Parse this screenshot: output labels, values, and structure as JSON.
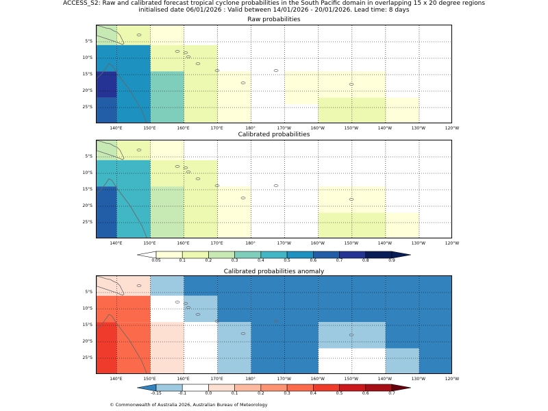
{
  "header": {
    "title_line1": "ACCESS_S2: Raw and calibrated forecast tropical cyclone probabilities in the South Pacific domain in overlapping 15 x 20 degree regions",
    "title_line2": "initialised date 06/01/2026 :  Valid between 14/01/2026 - 20/01/2026. Lead time: 8 days"
  },
  "axes": {
    "lat_labels": [
      "5°S",
      "10°S",
      "15°S",
      "20°S",
      "25°S"
    ],
    "lon_labels": [
      "140°E",
      "150°E",
      "160°E",
      "170°E",
      "180°",
      "170°W",
      "160°W",
      "150°W",
      "140°W",
      "130°W",
      "120°W"
    ]
  },
  "panels": [
    {
      "title": "Raw probabilities"
    },
    {
      "title": "Calibrated probabilities"
    },
    {
      "title": "Calibrated probabilities anomaly"
    }
  ],
  "colorbar_prob": {
    "ticks": [
      "0.05",
      "0.1",
      "0.2",
      "0.3",
      "0.4",
      "0.5",
      "0.6",
      "0.7",
      "0.8",
      "0.9"
    ],
    "colors": [
      "#ffffd9",
      "#edf8b1",
      "#c7e9b4",
      "#7fcdbb",
      "#41b6c4",
      "#1d91c0",
      "#225ea8",
      "#253494",
      "#081d58"
    ],
    "under_color": "#ffffff",
    "over_color": "#081d58"
  },
  "colorbar_anom": {
    "ticks": [
      "-0.15",
      "-0.1",
      "0.0",
      "0.1",
      "0.2",
      "0.3",
      "0.4",
      "0.5",
      "0.6",
      "0.7"
    ],
    "colors": [
      "#9ecae1",
      "#ffffff",
      "#fee0d2",
      "#fcbba1",
      "#fc9272",
      "#fb6a4a",
      "#ef3b2c",
      "#cb181d",
      "#a50f15"
    ],
    "under_color": "#3182bd",
    "over_color": "#67000d"
  },
  "chart_data": [
    {
      "type": "heatmap",
      "title": "Raw probabilities",
      "units": "probability",
      "regions_lon_deg": [
        [
          134,
          140
        ],
        [
          140,
          150
        ],
        [
          150,
          160
        ],
        [
          160,
          170
        ],
        [
          170,
          180
        ],
        [
          180,
          190
        ],
        [
          190,
          200
        ],
        [
          200,
          210
        ],
        [
          210,
          220
        ],
        [
          220,
          230
        ],
        [
          230,
          240
        ]
      ],
      "cells": [
        {
          "lon": [
            134,
            140
          ],
          "lat": [
            0,
            -6
          ],
          "value": 0.25
        },
        {
          "lon": [
            134,
            140
          ],
          "lat": [
            -6,
            -14
          ],
          "value": 0.55
        },
        {
          "lon": [
            134,
            140
          ],
          "lat": [
            -14,
            -22
          ],
          "value": 0.75
        },
        {
          "lon": [
            134,
            140
          ],
          "lat": [
            -22,
            -30
          ],
          "value": 0.65
        },
        {
          "lon": [
            140,
            150
          ],
          "lat": [
            0,
            -6
          ],
          "value": 0.15
        },
        {
          "lon": [
            140,
            150
          ],
          "lat": [
            -6,
            -30
          ],
          "value": 0.55
        },
        {
          "lon": [
            150,
            160
          ],
          "lat": [
            0,
            -6
          ],
          "value": 0.07
        },
        {
          "lon": [
            150,
            160
          ],
          "lat": [
            -6,
            -14
          ],
          "value": 0.15
        },
        {
          "lon": [
            150,
            160
          ],
          "lat": [
            -14,
            -30
          ],
          "value": 0.35
        },
        {
          "lon": [
            160,
            170
          ],
          "lat": [
            -6,
            -30
          ],
          "value": 0.15
        },
        {
          "lon": [
            170,
            180
          ],
          "lat": [
            -14,
            -30
          ],
          "value": 0.07
        },
        {
          "lon": [
            190,
            220
          ],
          "lat": [
            -14,
            -24
          ],
          "value": 0.07
        },
        {
          "lon": [
            210,
            230
          ],
          "lat": [
            -22,
            -30
          ],
          "value": 0.07
        },
        {
          "lon": [
            200,
            210
          ],
          "lat": [
            -22,
            -30
          ],
          "value": 0.15
        },
        {
          "lon": [
            210,
            220
          ],
          "lat": [
            -22,
            -30
          ],
          "value": 0.15
        }
      ]
    },
    {
      "type": "heatmap",
      "title": "Calibrated probabilities",
      "units": "probability",
      "cells": [
        {
          "lon": [
            134,
            140
          ],
          "lat": [
            0,
            -6
          ],
          "value": 0.25
        },
        {
          "lon": [
            134,
            140
          ],
          "lat": [
            -6,
            -14
          ],
          "value": 0.45
        },
        {
          "lon": [
            134,
            140
          ],
          "lat": [
            -14,
            -30
          ],
          "value": 0.65
        },
        {
          "lon": [
            140,
            150
          ],
          "lat": [
            0,
            -6
          ],
          "value": 0.15
        },
        {
          "lon": [
            140,
            150
          ],
          "lat": [
            -6,
            -30
          ],
          "value": 0.45
        },
        {
          "lon": [
            150,
            160
          ],
          "lat": [
            0,
            -6
          ],
          "value": 0.07
        },
        {
          "lon": [
            150,
            160
          ],
          "lat": [
            -6,
            -14
          ],
          "value": 0.15
        },
        {
          "lon": [
            150,
            160
          ],
          "lat": [
            -14,
            -30
          ],
          "value": 0.25
        },
        {
          "lon": [
            160,
            170
          ],
          "lat": [
            -6,
            -30
          ],
          "value": 0.15
        },
        {
          "lon": [
            170,
            180
          ],
          "lat": [
            -14,
            -30
          ],
          "value": 0.07
        },
        {
          "lon": [
            200,
            220
          ],
          "lat": [
            -14,
            -22
          ],
          "value": 0.07
        },
        {
          "lon": [
            200,
            220
          ],
          "lat": [
            -22,
            -30
          ],
          "value": 0.15
        },
        {
          "lon": [
            220,
            230
          ],
          "lat": [
            -22,
            -30
          ],
          "value": 0.07
        }
      ]
    },
    {
      "type": "heatmap",
      "title": "Calibrated probabilities anomaly",
      "units": "probability anomaly",
      "cells": [
        {
          "lon": [
            134,
            140
          ],
          "lat": [
            0,
            -6
          ],
          "value": 0.05
        },
        {
          "lon": [
            134,
            140
          ],
          "lat": [
            -6,
            -14
          ],
          "value": 0.3
        },
        {
          "lon": [
            134,
            140
          ],
          "lat": [
            -14,
            -30
          ],
          "value": 0.45
        },
        {
          "lon": [
            140,
            150
          ],
          "lat": [
            0,
            -6
          ],
          "value": 0.05
        },
        {
          "lon": [
            140,
            150
          ],
          "lat": [
            -6,
            -14
          ],
          "value": 0.3
        },
        {
          "lon": [
            140,
            150
          ],
          "lat": [
            -14,
            -30
          ],
          "value": 0.3
        },
        {
          "lon": [
            150,
            160
          ],
          "lat": [
            0,
            -6
          ],
          "value": -0.12
        },
        {
          "lon": [
            150,
            160
          ],
          "lat": [
            -6,
            -14
          ],
          "value": 0.0
        },
        {
          "lon": [
            150,
            160
          ],
          "lat": [
            -14,
            -30
          ],
          "value": 0.05
        },
        {
          "lon": [
            160,
            170
          ],
          "lat": [
            0,
            -6
          ],
          "value": -0.2
        },
        {
          "lon": [
            160,
            170
          ],
          "lat": [
            -6,
            -14
          ],
          "value": -0.12
        },
        {
          "lon": [
            160,
            170
          ],
          "lat": [
            -14,
            -30
          ],
          "value": 0.0
        },
        {
          "lon": [
            170,
            180
          ],
          "lat": [
            0,
            -14
          ],
          "value": -0.2
        },
        {
          "lon": [
            170,
            180
          ],
          "lat": [
            -14,
            -30
          ],
          "value": -0.12
        },
        {
          "lon": [
            180,
            200
          ],
          "lat": [
            0,
            -30
          ],
          "value": -0.2
        },
        {
          "lon": [
            200,
            220
          ],
          "lat": [
            0,
            -14
          ],
          "value": -0.2
        },
        {
          "lon": [
            200,
            220
          ],
          "lat": [
            -14,
            -22
          ],
          "value": -0.12
        },
        {
          "lon": [
            200,
            220
          ],
          "lat": [
            -22,
            -30
          ],
          "value": 0.0
        },
        {
          "lon": [
            220,
            230
          ],
          "lat": [
            0,
            -22
          ],
          "value": -0.2
        },
        {
          "lon": [
            220,
            230
          ],
          "lat": [
            -22,
            -30
          ],
          "value": -0.12
        },
        {
          "lon": [
            230,
            240
          ],
          "lat": [
            0,
            -30
          ],
          "value": -0.2
        }
      ]
    }
  ],
  "footer": {
    "copyright": "© Commonwealth of Australia 2026, Australian Bureau of Meteorology"
  }
}
